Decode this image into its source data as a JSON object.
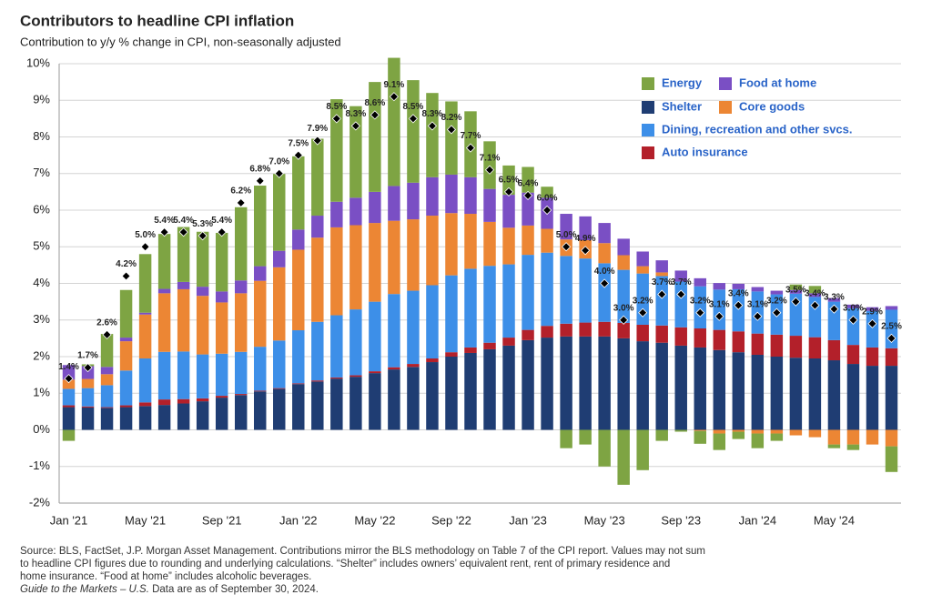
{
  "chart_data": {
    "type": "stacked-bar",
    "title": "Contributors to headline CPI inflation",
    "subtitle": "Contribution to y/y % change in CPI, non-seasonally adjusted",
    "categories": [
      "Jan '21",
      null,
      null,
      null,
      "May '21",
      null,
      null,
      null,
      "Sep '21",
      null,
      null,
      null,
      "Jan '22",
      null,
      null,
      null,
      "May '22",
      null,
      null,
      null,
      "Sep '22",
      null,
      null,
      null,
      "Jan '23",
      null,
      null,
      null,
      "May '23",
      null,
      null,
      null,
      "Sep '23",
      null,
      null,
      null,
      "Jan '24",
      null,
      null,
      null,
      "May '24",
      null,
      null,
      null
    ],
    "series": [
      {
        "name": "Shelter",
        "color": "#1f3d73",
        "values": [
          0.62,
          0.61,
          0.6,
          0.62,
          0.65,
          0.68,
          0.72,
          0.78,
          0.88,
          0.95,
          1.05,
          1.12,
          1.25,
          1.32,
          1.4,
          1.45,
          1.55,
          1.65,
          1.72,
          1.85,
          2.0,
          2.1,
          2.2,
          2.3,
          2.45,
          2.52,
          2.55,
          2.55,
          2.55,
          2.5,
          2.42,
          2.38,
          2.3,
          2.25,
          2.18,
          2.12,
          2.05,
          2.0,
          1.97,
          1.95,
          1.9,
          1.8,
          1.75,
          1.75
        ]
      },
      {
        "name": "Auto insurance",
        "color": "#b3202a",
        "values": [
          0.05,
          0.03,
          0.02,
          0.05,
          0.1,
          0.15,
          0.12,
          0.08,
          0.05,
          0.03,
          0.02,
          0.02,
          0.02,
          0.03,
          0.03,
          0.04,
          0.05,
          0.06,
          0.08,
          0.1,
          0.12,
          0.15,
          0.18,
          0.22,
          0.28,
          0.32,
          0.35,
          0.38,
          0.4,
          0.42,
          0.45,
          0.47,
          0.5,
          0.52,
          0.55,
          0.57,
          0.58,
          0.6,
          0.6,
          0.58,
          0.55,
          0.52,
          0.5,
          0.48
        ]
      },
      {
        "name": "Dining, recreation and other svcs.",
        "color": "#3d8fe8",
        "values": [
          0.45,
          0.5,
          0.6,
          0.95,
          1.2,
          1.3,
          1.3,
          1.2,
          1.15,
          1.15,
          1.2,
          1.3,
          1.45,
          1.6,
          1.7,
          1.8,
          1.9,
          2.0,
          2.0,
          2.0,
          2.1,
          2.15,
          2.1,
          2.0,
          2.05,
          2.0,
          1.85,
          1.75,
          1.6,
          1.45,
          1.4,
          1.35,
          1.25,
          1.15,
          1.1,
          1.15,
          1.15,
          1.1,
          1.15,
          1.1,
          1.05,
          1.0,
          1.0,
          1.05
        ]
      },
      {
        "name": "Core goods",
        "color": "#ec8634",
        "values": [
          0.25,
          0.25,
          0.3,
          0.8,
          1.2,
          1.6,
          1.7,
          1.6,
          1.4,
          1.6,
          1.8,
          2.0,
          2.2,
          2.3,
          2.4,
          2.3,
          2.15,
          2.0,
          1.95,
          1.9,
          1.7,
          1.5,
          1.2,
          1.0,
          0.8,
          0.65,
          0.45,
          0.5,
          0.55,
          0.4,
          0.2,
          0.1,
          0.0,
          -0.03,
          -0.1,
          -0.05,
          -0.1,
          -0.1,
          -0.15,
          -0.2,
          -0.4,
          -0.4,
          -0.4,
          -0.45
        ]
      },
      {
        "name": "Food at home",
        "color": "#7a4fc4",
        "values": [
          0.4,
          0.35,
          0.2,
          0.1,
          0.05,
          0.12,
          0.2,
          0.25,
          0.3,
          0.35,
          0.4,
          0.45,
          0.55,
          0.6,
          0.7,
          0.75,
          0.85,
          0.95,
          1.0,
          1.05,
          1.05,
          1.0,
          0.9,
          0.9,
          0.9,
          0.85,
          0.7,
          0.65,
          0.55,
          0.45,
          0.4,
          0.33,
          0.3,
          0.22,
          0.18,
          0.15,
          0.12,
          0.1,
          0.1,
          0.1,
          0.1,
          0.1,
          0.1,
          0.1
        ]
      },
      {
        "name": "Energy",
        "color": "#7ea443",
        "values": [
          -0.3,
          0.05,
          0.9,
          1.3,
          1.6,
          1.5,
          1.5,
          1.5,
          1.6,
          2.0,
          2.2,
          2.1,
          2.0,
          2.1,
          2.8,
          2.5,
          3.0,
          3.5,
          2.8,
          2.3,
          2.0,
          1.8,
          1.3,
          0.8,
          0.7,
          0.3,
          -0.5,
          -0.4,
          -1.0,
          -1.5,
          -1.1,
          -0.3,
          -0.05,
          -0.35,
          -0.45,
          -0.2,
          -0.4,
          -0.2,
          0.15,
          0.2,
          -0.1,
          -0.15,
          0.0,
          -0.7
        ]
      }
    ],
    "headline": {
      "values": [
        1.4,
        1.7,
        2.6,
        4.2,
        5.0,
        5.4,
        5.4,
        5.3,
        5.4,
        6.2,
        6.8,
        7.0,
        7.5,
        7.9,
        8.5,
        8.3,
        8.6,
        9.1,
        8.5,
        8.3,
        8.2,
        7.7,
        7.1,
        6.5,
        6.4,
        6.0,
        5.0,
        4.9,
        4.0,
        3.0,
        3.2,
        3.7,
        3.7,
        3.2,
        3.1,
        3.4,
        3.1,
        3.2,
        3.5,
        3.4,
        3.3,
        3.0,
        2.9,
        2.5
      ],
      "value_labels": [
        "1.4%",
        "1.7%",
        "2.6%",
        "4.2%",
        "5.0%",
        "5.4%",
        "5.4%",
        "5.3%",
        "5.4%",
        "6.2%",
        "6.8%",
        "7.0%",
        "7.5%",
        "7.9%",
        "8.5%",
        "8.3%",
        "8.6%",
        "9.1%",
        "8.5%",
        "8.3%",
        "8.2%",
        "7.7%",
        "7.1%",
        "6.5%",
        "6.4%",
        "6.0%",
        "5.0%",
        "4.9%",
        "4.0%",
        "3.0%",
        "3.2%",
        "3.7%",
        "3.7%",
        "3.2%",
        "3.1%",
        "3.4%",
        "3.1%",
        "3.2%",
        "3.5%",
        "3.4%",
        "3.3%",
        "3.0%",
        "2.9%",
        "2.5%"
      ],
      "color": "#000000"
    },
    "ylim": [
      -2,
      10
    ],
    "yticks": [
      {
        "value": -2,
        "label": "-2%"
      },
      {
        "value": -1,
        "label": "-1%"
      },
      {
        "value": 0,
        "label": "0%"
      },
      {
        "value": 1,
        "label": "1%"
      },
      {
        "value": 2,
        "label": "2%"
      },
      {
        "value": 3,
        "label": "3%"
      },
      {
        "value": 4,
        "label": "4%"
      },
      {
        "value": 5,
        "label": "5%"
      },
      {
        "value": 6,
        "label": "6%"
      },
      {
        "value": 7,
        "label": "7%"
      },
      {
        "value": 8,
        "label": "8%"
      },
      {
        "value": 9,
        "label": "9%"
      },
      {
        "value": 10,
        "label": "10%"
      }
    ],
    "grid": true,
    "source": [
      "Source: BLS, FactSet, J.P. Morgan Asset Management. Contributions mirror the BLS methodology on Table 7 of the CPI report. Values may not sum",
      "to headline CPI figures due to rounding and underlying calculations. “Shelter” includes owners’ equivalent rent, rent of primary residence and",
      "home insurance. “Food at home” includes alcoholic beverages."
    ],
    "guide": "Guide to the Markets – U.S.",
    "data_date": "Data are as of September 30, 2024."
  }
}
